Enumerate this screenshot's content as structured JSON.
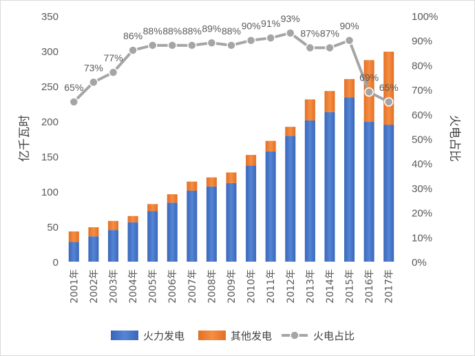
{
  "chart_data": {
    "type": "bar",
    "stacked": true,
    "categories": [
      "2001年",
      "2002年",
      "2003年",
      "2004年",
      "2005年",
      "2006年",
      "2007年",
      "2008年",
      "2009年",
      "2010年",
      "2011年",
      "2012年",
      "2013年",
      "2014年",
      "2015年",
      "2016年",
      "2017年"
    ],
    "series": [
      {
        "name": "火力发电",
        "type": "bar",
        "axis": "left",
        "color": "#4472c4",
        "values": [
          28,
          36,
          45,
          56,
          72,
          84,
          101,
          107,
          112,
          137,
          157,
          179,
          201,
          213,
          234,
          199,
          195
        ]
      },
      {
        "name": "其他发电",
        "type": "bar",
        "axis": "left",
        "color": "#ed7d31",
        "values": [
          15,
          13,
          13,
          9,
          10,
          12,
          13,
          13,
          15,
          15,
          15,
          13,
          30,
          30,
          26,
          88,
          104
        ]
      },
      {
        "name": "火电占比",
        "type": "line",
        "axis": "right",
        "color": "#a5a5a5",
        "values": [
          0.65,
          0.73,
          0.77,
          0.86,
          0.88,
          0.88,
          0.88,
          0.89,
          0.88,
          0.9,
          0.91,
          0.93,
          0.87,
          0.87,
          0.9,
          0.69,
          0.65
        ],
        "labels": [
          "65%",
          "73%",
          "77%",
          "86%",
          "88%",
          "88%",
          "88%",
          "89%",
          "88%",
          "90%",
          "91%",
          "93%",
          "87%",
          "87%",
          "90%",
          "69%",
          "65%"
        ]
      }
    ],
    "ylabel": "亿千瓦时",
    "ylim": [
      0,
      350
    ],
    "yticks": [
      "0",
      "50",
      "100",
      "150",
      "200",
      "250",
      "300",
      "350"
    ],
    "y2label": "火电占比",
    "y2lim": [
      0,
      1
    ],
    "y2ticks": [
      "0%",
      "10%",
      "20%",
      "30%",
      "40%",
      "50%",
      "60%",
      "70%",
      "80%",
      "90%",
      "100%"
    ],
    "grid": false,
    "legend": "bottom"
  }
}
